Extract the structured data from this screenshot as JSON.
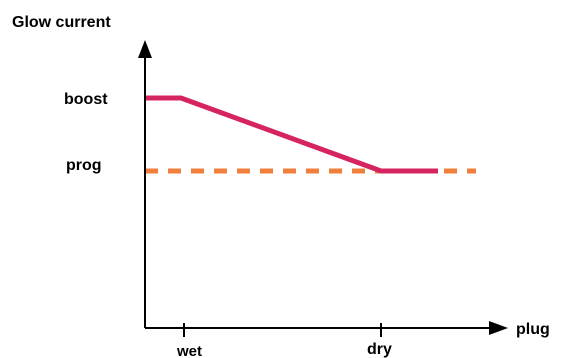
{
  "chart_data": {
    "type": "line",
    "ylabel": "Glow current",
    "xlabel": "plug",
    "y_levels": [
      "boost",
      "prog"
    ],
    "x_markers": [
      "wet",
      "dry"
    ],
    "series": [
      {
        "style": "solid",
        "color": "#d6245f",
        "points": [
          {
            "x": "start",
            "y": "boost"
          },
          {
            "x": "wet",
            "y": "boost"
          },
          {
            "x": "dry",
            "y": "prog"
          },
          {
            "x": "end",
            "y": "prog"
          }
        ]
      },
      {
        "style": "dashed",
        "color": "#f07f3c",
        "points": [
          {
            "x": "start",
            "y": "prog"
          },
          {
            "x": "end",
            "y": "prog"
          }
        ]
      }
    ],
    "grid": false,
    "legend": "none"
  },
  "colors": {
    "axis": "#000000",
    "boost_line": "#d6245f",
    "prog_line": "#f07f3c"
  }
}
